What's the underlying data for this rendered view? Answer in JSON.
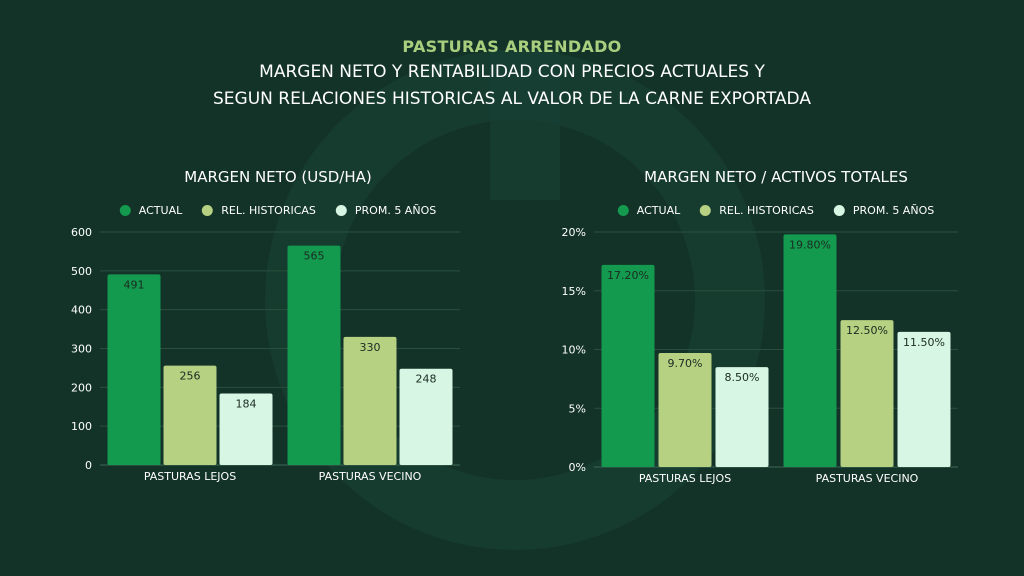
{
  "kicker": "PASTURAS ARRENDADO",
  "subtitle_line1": "MARGEN NETO Y RENTABILIDAD CON PRECIOS ACTUALES Y",
  "subtitle_line2": "SEGUN RELACIONES HISTORICAS AL VALOR DE LA CARNE EXPORTADA",
  "colors": {
    "background": "#133329",
    "actual": "#139a4e",
    "rel_historicas": "#b5d181",
    "prom_5_anos": "#d8f6e4",
    "kicker": "#a9cf7e"
  },
  "chart_data": [
    {
      "type": "bar",
      "title": "MARGEN NETO (USD/HA)",
      "categories": [
        "PASTURAS LEJOS",
        "PASTURAS VECINO"
      ],
      "series": [
        {
          "name": "ACTUAL",
          "values": [
            491,
            565
          ],
          "labels": [
            "491",
            "565"
          ]
        },
        {
          "name": "REL. HISTORICAS",
          "values": [
            256,
            330
          ],
          "labels": [
            "256",
            "330"
          ]
        },
        {
          "name": "PROM. 5 AÑOS",
          "values": [
            184,
            248
          ],
          "labels": [
            "184",
            "248"
          ]
        }
      ],
      "ylim": [
        0,
        600
      ],
      "yticks": [
        0,
        100,
        200,
        300,
        400,
        500,
        600
      ],
      "ytick_labels": [
        "0",
        "100",
        "200",
        "300",
        "400",
        "500",
        "600"
      ],
      "legend_position": "top",
      "grid": true
    },
    {
      "type": "bar",
      "title": "MARGEN NETO / ACTIVOS TOTALES",
      "categories": [
        "PASTURAS LEJOS",
        "PASTURAS VECINO"
      ],
      "series": [
        {
          "name": "ACTUAL",
          "values": [
            17.2,
            19.8
          ],
          "labels": [
            "17.20%",
            "19.80%"
          ]
        },
        {
          "name": "REL. HISTORICAS",
          "values": [
            9.7,
            12.5
          ],
          "labels": [
            "9.70%",
            "12.50%"
          ]
        },
        {
          "name": "PROM. 5 AÑOS",
          "values": [
            8.5,
            11.5
          ],
          "labels": [
            "8.50%",
            "11.50%"
          ]
        }
      ],
      "ylim": [
        0,
        20
      ],
      "yticks": [
        0,
        5,
        10,
        15,
        20
      ],
      "ytick_labels": [
        "0%",
        "5%",
        "10%",
        "15%",
        "20%"
      ],
      "legend_position": "top",
      "grid": true
    }
  ]
}
